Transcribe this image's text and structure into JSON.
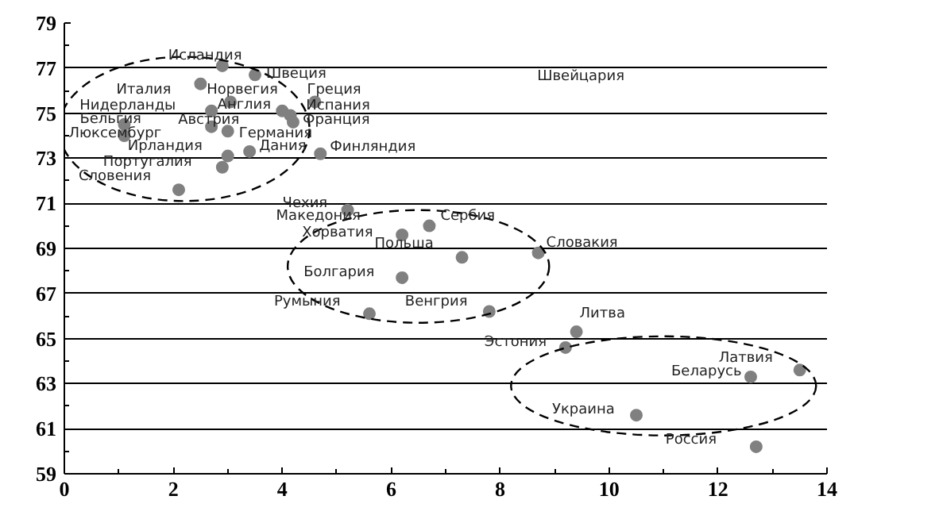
{
  "chart_data": {
    "type": "scatter",
    "color": "#808080",
    "marker": "circle",
    "x": [
      2.5,
      2.9,
      3.5,
      3.05,
      4.6,
      2.7,
      4.0,
      4.15,
      4.2,
      2.7,
      3.0,
      1.1,
      1.1,
      3.0,
      2.9,
      3.4,
      4.7,
      2.1,
      5.2,
      6.2,
      6.7,
      7.3,
      8.7,
      6.2,
      5.6,
      7.8,
      9.4,
      9.2,
      12.6,
      13.5,
      10.5,
      12.7
    ],
    "values": [
      76.3,
      77.1,
      76.7,
      75.5,
      75.5,
      75.1,
      75.1,
      74.9,
      74.6,
      74.4,
      74.2,
      74.5,
      74.0,
      73.1,
      72.6,
      73.3,
      73.2,
      71.6,
      70.7,
      69.6,
      70.0,
      68.6,
      68.8,
      67.7,
      66.1,
      66.2,
      65.3,
      64.6,
      63.3,
      63.6,
      61.6,
      60.2
    ],
    "xlim": [
      0,
      14
    ],
    "ylim": [
      59,
      79
    ],
    "xticks": [
      0,
      2,
      4,
      6,
      8,
      10,
      12,
      14
    ],
    "yticks": [
      59,
      61,
      63,
      65,
      67,
      69,
      71,
      73,
      75,
      77,
      79
    ],
    "grid": "y",
    "annotations": [
      {
        "text": "Исландия",
        "x": 2.9,
        "y": 77.1
      },
      {
        "text": "Швеция",
        "x": 3.5,
        "y": 76.7
      },
      {
        "text": "Италия",
        "x": 2.5,
        "y": 76.3
      },
      {
        "text": "Норвегия",
        "x": 3.05,
        "y": 75.5
      },
      {
        "text": "Греция",
        "x": 4.6,
        "y": 75.5
      },
      {
        "text": "Нидерланды",
        "x": 2.7,
        "y": 75.1
      },
      {
        "text": "Англия",
        "x": 4.15,
        "y": 74.9
      },
      {
        "text": "Испания",
        "x": 4.0,
        "y": 75.1
      },
      {
        "text": "Бельгия",
        "x": 1.1,
        "y": 74.5
      },
      {
        "text": "Австрия",
        "x": 2.7,
        "y": 74.4
      },
      {
        "text": "Франция",
        "x": 4.2,
        "y": 74.6
      },
      {
        "text": "Люксембург",
        "x": 1.1,
        "y": 74.0
      },
      {
        "text": "Германия",
        "x": 3.0,
        "y": 74.2
      },
      {
        "text": "Ирландия",
        "x": 3.0,
        "y": 73.1
      },
      {
        "text": "Дания",
        "x": 3.4,
        "y": 73.3
      },
      {
        "text": "Финляндия",
        "x": 4.7,
        "y": 73.2
      },
      {
        "text": "Португалия",
        "x": 2.9,
        "y": 72.6
      },
      {
        "text": "Словения",
        "x": 2.1,
        "y": 71.6
      },
      "Швейцария",
      {
        "text": "Чехия",
        "x": 5.2,
        "y": 70.7
      },
      {
        "text": "Македония",
        "x": 5.2,
        "y": 70.7
      },
      {
        "text": "Хорватия",
        "x": 6.2,
        "y": 69.6
      },
      {
        "text": "Сербия",
        "x": 6.7,
        "y": 70.0
      },
      {
        "text": "Польша",
        "x": 7.3,
        "y": 68.6
      },
      {
        "text": "Словакия",
        "x": 8.7,
        "y": 68.8
      },
      {
        "text": "Болгария",
        "x": 6.2,
        "y": 67.7
      },
      {
        "text": "Румыния",
        "x": 5.6,
        "y": 66.1
      },
      {
        "text": "Венгрия",
        "x": 7.8,
        "y": 66.2
      },
      {
        "text": "Литва",
        "x": 9.4,
        "y": 65.3
      },
      {
        "text": "Эстония",
        "x": 9.2,
        "y": 64.6
      },
      {
        "text": "Латвия",
        "x": 13.5,
        "y": 63.6
      },
      {
        "text": "Беларусь",
        "x": 12.6,
        "y": 63.3
      },
      {
        "text": "Украина",
        "x": 10.5,
        "y": 61.6
      },
      {
        "text": "Россия",
        "x": 12.7,
        "y": 60.2
      }
    ]
  }
}
